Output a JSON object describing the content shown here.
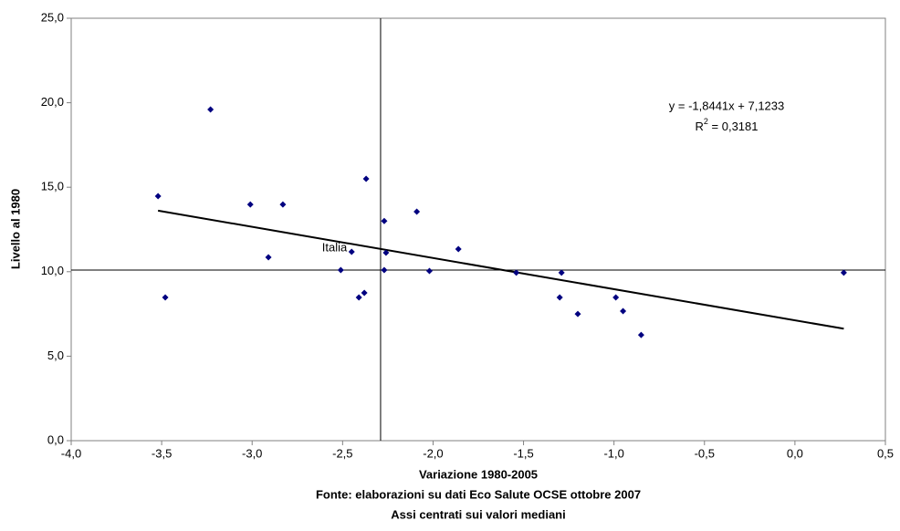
{
  "chart_data": {
    "type": "scatter",
    "x_label": "Variazione 1980-2005",
    "y_label": "Livello al 1980",
    "notes": [
      "Fonte: elaborazioni su dati Eco Salute OCSE ottobre 2007",
      "Assi centrati sui valori mediani"
    ],
    "color": "#000080",
    "x": [
      -3.52,
      -3.48,
      -3.23,
      -3.01,
      -2.91,
      -2.83,
      -2.51,
      -2.45,
      -2.41,
      -2.38,
      -2.37,
      -2.27,
      -2.26,
      -2.27,
      -2.09,
      -2.02,
      -1.86,
      -1.54,
      -1.29,
      -1.3,
      -1.2,
      -0.99,
      -0.95,
      -0.85,
      0.27
    ],
    "values": [
      14.47,
      8.48,
      19.6,
      13.98,
      10.85,
      13.98,
      10.1,
      11.18,
      8.48,
      8.75,
      15.5,
      13.0,
      11.12,
      10.1,
      13.55,
      10.04,
      11.34,
      9.94,
      9.94,
      8.48,
      7.5,
      8.48,
      7.67,
      6.26,
      9.94
    ],
    "point_labels": [
      null,
      null,
      null,
      null,
      null,
      null,
      null,
      "Italia",
      null,
      null,
      null,
      null,
      null,
      null,
      null,
      null,
      null,
      null,
      null,
      null,
      null,
      null,
      null,
      null,
      null
    ],
    "trendline": {
      "slope": -1.8441,
      "intercept": 7.1233,
      "equation": "y = -1,8441x + 7,1233",
      "r_squared": {
        "symbol": "R",
        "power": "2",
        "text": " = 0,3181"
      }
    },
    "medians": {
      "x": -2.29,
      "y": 10.1
    },
    "xlim": [
      -4.0,
      0.5
    ],
    "ylim": [
      0,
      25
    ],
    "xticks": [
      {
        "value": -4.0,
        "label": "-4,0"
      },
      {
        "value": -3.5,
        "label": "-3,5"
      },
      {
        "value": -3.0,
        "label": "-3,0"
      },
      {
        "value": -2.5,
        "label": "-2,5"
      },
      {
        "value": -2.0,
        "label": "-2,0"
      },
      {
        "value": -1.5,
        "label": "-1,5"
      },
      {
        "value": -1.0,
        "label": "-1,0"
      },
      {
        "value": -0.5,
        "label": "-0,5"
      },
      {
        "value": 0.0,
        "label": "0,0"
      },
      {
        "value": 0.5,
        "label": "0,5"
      }
    ],
    "yticks": [
      {
        "value": 0,
        "label": "0,0"
      },
      {
        "value": 5,
        "label": "5,0"
      },
      {
        "value": 10,
        "label": "10,0"
      },
      {
        "value": 15,
        "label": "15,0"
      },
      {
        "value": 20,
        "label": "20,0"
      },
      {
        "value": 25,
        "label": "25,0"
      }
    ]
  }
}
